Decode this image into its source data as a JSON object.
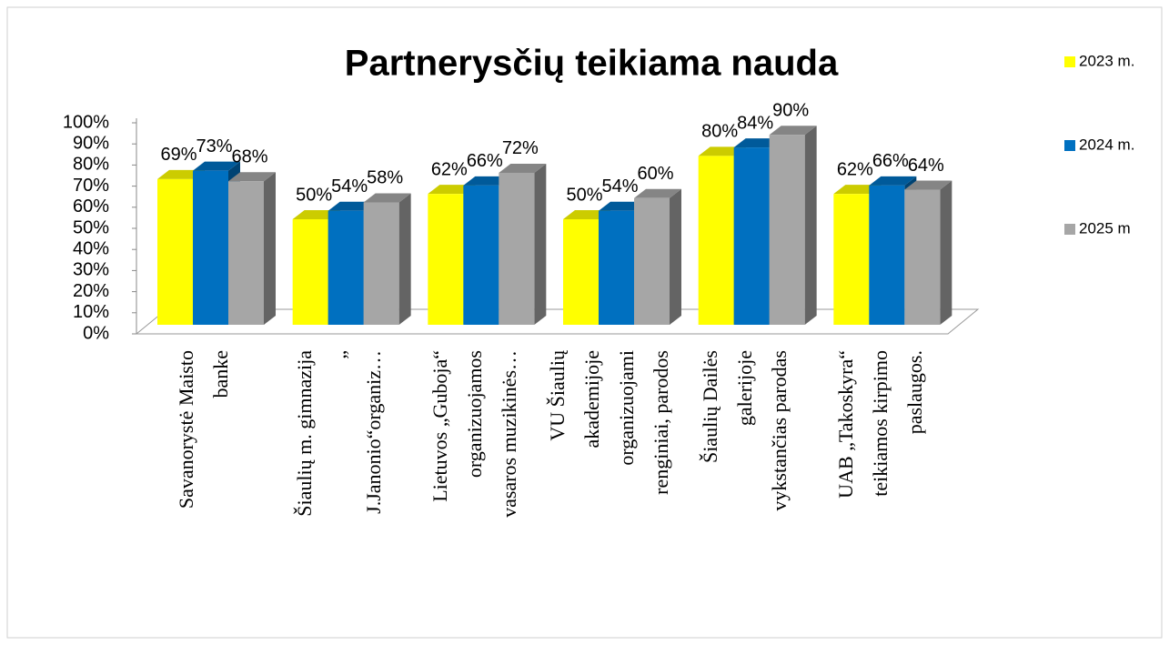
{
  "chart_data": {
    "type": "bar3d",
    "title": "Partnerysčių teikiama nauda",
    "categories": [
      "Savanorystė Maisto\nbanke",
      "Šiaulių m. gimnazija\n„\nJ.Janonio“organiz…",
      "Lietuvos „Guboja“\norganizuojamos\nvasaros muzikinės…",
      "VU Šiaulių\nakademijoje\norganizuojami\nrenginiai, parodos",
      "Šiaulių Dailės\ngalerijoje\nvykstančias parodas",
      "UAB „Takoskyra“\nteikiamos kirpimo\npaslaugos."
    ],
    "series": [
      {
        "name": "2023 m.",
        "color": "#ffff00",
        "values": [
          69,
          50,
          62,
          50,
          80,
          62
        ],
        "value_labels": [
          "69%",
          "50%",
          "62%",
          "50%",
          "80%",
          "62%"
        ]
      },
      {
        "name": "2024 m.",
        "color": "#0070c0",
        "values": [
          73,
          54,
          66,
          54,
          84,
          66
        ],
        "value_labels": [
          "73%",
          "54%",
          "66%",
          "54%",
          "84%",
          "66%"
        ]
      },
      {
        "name": "2025 m",
        "color": "#a6a6a6",
        "values": [
          68,
          58,
          72,
          60,
          90,
          64
        ],
        "value_labels": [
          "68%",
          "58%",
          "72%",
          "60%",
          "90%",
          "64%"
        ]
      }
    ],
    "ylim": [
      0,
      100
    ],
    "yticks": [
      {
        "value": 0,
        "label": "0%"
      },
      {
        "value": 10,
        "label": "10%"
      },
      {
        "value": 20,
        "label": "20%"
      },
      {
        "value": 30,
        "label": "30%"
      },
      {
        "value": 40,
        "label": "40%"
      },
      {
        "value": 50,
        "label": "50%"
      },
      {
        "value": 60,
        "label": "60%"
      },
      {
        "value": 70,
        "label": "70%"
      },
      {
        "value": 80,
        "label": "80%"
      },
      {
        "value": 90,
        "label": "90%"
      },
      {
        "value": 100,
        "label": "100%"
      }
    ],
    "legend": "right"
  }
}
